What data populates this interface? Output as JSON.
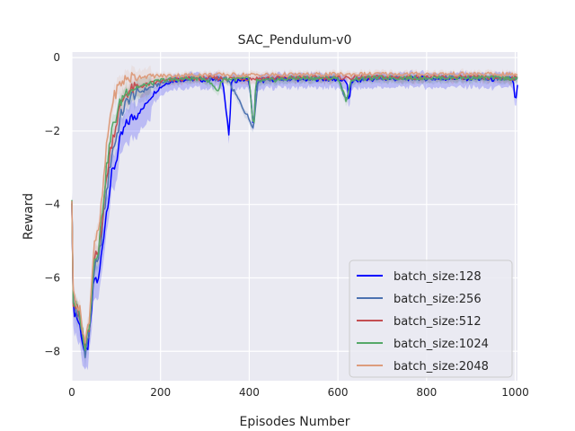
{
  "chart_data": {
    "type": "line",
    "title": "SAC_Pendulum-v0",
    "xlabel": "Episodes Number",
    "ylabel": "Reward",
    "xlim": [
      0,
      1005
    ],
    "ylim": [
      -8.8,
      0.15
    ],
    "xticks": [
      0,
      200,
      400,
      600,
      800,
      1000
    ],
    "yticks": [
      0,
      -2,
      -4,
      -6,
      -8
    ],
    "grid": true,
    "legend_position": "lower-right",
    "series": [
      {
        "name": "batch_size:128",
        "color": "#0000ff",
        "points": [
          [
            0,
            -3.8
          ],
          [
            2,
            -6.8
          ],
          [
            10,
            -7.0
          ],
          [
            20,
            -7.4
          ],
          [
            30,
            -8.2
          ],
          [
            40,
            -7.6
          ],
          [
            50,
            -6.0
          ],
          [
            60,
            -6.1
          ],
          [
            70,
            -5.0
          ],
          [
            80,
            -4.0
          ],
          [
            90,
            -3.2
          ],
          [
            100,
            -2.8
          ],
          [
            110,
            -2.2
          ],
          [
            120,
            -1.9
          ],
          [
            130,
            -1.7
          ],
          [
            140,
            -1.6
          ],
          [
            150,
            -1.5
          ],
          [
            160,
            -1.4
          ],
          [
            170,
            -1.2
          ],
          [
            180,
            -1.05
          ],
          [
            190,
            -0.9
          ],
          [
            200,
            -0.8
          ],
          [
            220,
            -0.65
          ],
          [
            240,
            -0.6
          ],
          [
            260,
            -0.6
          ],
          [
            280,
            -0.58
          ],
          [
            300,
            -0.62
          ],
          [
            320,
            -0.6
          ],
          [
            340,
            -0.6
          ],
          [
            355,
            -2.2
          ],
          [
            360,
            -0.65
          ],
          [
            380,
            -0.6
          ],
          [
            400,
            -0.62
          ],
          [
            410,
            -2.0
          ],
          [
            415,
            -0.7
          ],
          [
            440,
            -0.6
          ],
          [
            480,
            -0.58
          ],
          [
            520,
            -0.6
          ],
          [
            560,
            -0.58
          ],
          [
            600,
            -0.6
          ],
          [
            620,
            -0.65
          ],
          [
            625,
            -1.3
          ],
          [
            630,
            -0.65
          ],
          [
            660,
            -0.6
          ],
          [
            700,
            -0.58
          ],
          [
            740,
            -0.58
          ],
          [
            780,
            -0.56
          ],
          [
            820,
            -0.58
          ],
          [
            860,
            -0.56
          ],
          [
            900,
            -0.57
          ],
          [
            940,
            -0.6
          ],
          [
            980,
            -0.58
          ],
          [
            995,
            -0.6
          ],
          [
            1000,
            -1.25
          ],
          [
            1005,
            -0.8
          ]
        ]
      },
      {
        "name": "batch_size:256",
        "color": "#4c72b0",
        "points": [
          [
            0,
            -3.8
          ],
          [
            2,
            -6.7
          ],
          [
            10,
            -6.9
          ],
          [
            20,
            -7.3
          ],
          [
            30,
            -8.0
          ],
          [
            40,
            -7.5
          ],
          [
            50,
            -5.7
          ],
          [
            60,
            -5.6
          ],
          [
            70,
            -4.5
          ],
          [
            80,
            -3.5
          ],
          [
            90,
            -2.6
          ],
          [
            100,
            -2.2
          ],
          [
            110,
            -1.6
          ],
          [
            120,
            -1.3
          ],
          [
            130,
            -1.1
          ],
          [
            140,
            -1.0
          ],
          [
            150,
            -0.95
          ],
          [
            160,
            -0.9
          ],
          [
            180,
            -0.8
          ],
          [
            200,
            -0.7
          ],
          [
            220,
            -0.62
          ],
          [
            250,
            -0.58
          ],
          [
            300,
            -0.57
          ],
          [
            350,
            -0.58
          ],
          [
            410,
            -1.9
          ],
          [
            420,
            -0.6
          ],
          [
            500,
            -0.57
          ],
          [
            600,
            -0.56
          ],
          [
            620,
            -1.2
          ],
          [
            630,
            -0.58
          ],
          [
            700,
            -0.56
          ],
          [
            800,
            -0.55
          ],
          [
            900,
            -0.55
          ],
          [
            1000,
            -0.58
          ],
          [
            1005,
            -0.6
          ]
        ]
      },
      {
        "name": "batch_size:512",
        "color": "#c44e52",
        "points": [
          [
            0,
            -3.8
          ],
          [
            2,
            -6.6
          ],
          [
            10,
            -6.8
          ],
          [
            20,
            -7.2
          ],
          [
            30,
            -7.9
          ],
          [
            40,
            -7.3
          ],
          [
            50,
            -5.5
          ],
          [
            60,
            -5.3
          ],
          [
            70,
            -4.2
          ],
          [
            80,
            -3.1
          ],
          [
            90,
            -2.3
          ],
          [
            100,
            -1.8
          ],
          [
            110,
            -1.3
          ],
          [
            120,
            -1.0
          ],
          [
            130,
            -0.9
          ],
          [
            150,
            -0.8
          ],
          [
            180,
            -0.7
          ],
          [
            200,
            -0.65
          ],
          [
            250,
            -0.58
          ],
          [
            300,
            -0.56
          ],
          [
            400,
            -0.57
          ],
          [
            500,
            -0.55
          ],
          [
            600,
            -0.55
          ],
          [
            700,
            -0.54
          ],
          [
            800,
            -0.54
          ],
          [
            900,
            -0.54
          ],
          [
            1000,
            -0.56
          ],
          [
            1005,
            -0.57
          ]
        ]
      },
      {
        "name": "batch_size:1024",
        "color": "#55a868",
        "points": [
          [
            0,
            -3.8
          ],
          [
            2,
            -6.6
          ],
          [
            10,
            -6.8
          ],
          [
            20,
            -7.2
          ],
          [
            30,
            -7.9
          ],
          [
            40,
            -7.2
          ],
          [
            50,
            -5.5
          ],
          [
            60,
            -5.2
          ],
          [
            70,
            -4.0
          ],
          [
            80,
            -2.8
          ],
          [
            90,
            -2.0
          ],
          [
            100,
            -1.6
          ],
          [
            110,
            -1.2
          ],
          [
            120,
            -0.95
          ],
          [
            130,
            -0.85
          ],
          [
            150,
            -0.8
          ],
          [
            180,
            -0.7
          ],
          [
            200,
            -0.62
          ],
          [
            250,
            -0.58
          ],
          [
            300,
            -0.56
          ],
          [
            330,
            -0.9
          ],
          [
            340,
            -0.58
          ],
          [
            400,
            -0.58
          ],
          [
            410,
            -2.05
          ],
          [
            415,
            -0.65
          ],
          [
            500,
            -0.56
          ],
          [
            600,
            -0.56
          ],
          [
            620,
            -1.2
          ],
          [
            630,
            -0.58
          ],
          [
            700,
            -0.55
          ],
          [
            800,
            -0.55
          ],
          [
            900,
            -0.55
          ],
          [
            1000,
            -0.56
          ],
          [
            1005,
            -0.58
          ]
        ]
      },
      {
        "name": "batch_size:2048",
        "color": "#dd9c7c",
        "points": [
          [
            0,
            -3.8
          ],
          [
            2,
            -6.4
          ],
          [
            10,
            -6.6
          ],
          [
            20,
            -7.0
          ],
          [
            30,
            -7.8
          ],
          [
            40,
            -7.0
          ],
          [
            50,
            -5.0
          ],
          [
            60,
            -4.8
          ],
          [
            70,
            -3.6
          ],
          [
            80,
            -2.2
          ],
          [
            90,
            -1.3
          ],
          [
            100,
            -0.9
          ],
          [
            110,
            -0.7
          ],
          [
            120,
            -0.6
          ],
          [
            130,
            -0.55
          ],
          [
            150,
            -0.52
          ],
          [
            180,
            -0.5
          ],
          [
            200,
            -0.5
          ],
          [
            250,
            -0.48
          ],
          [
            300,
            -0.47
          ],
          [
            400,
            -0.47
          ],
          [
            500,
            -0.47
          ],
          [
            600,
            -0.46
          ],
          [
            700,
            -0.45
          ],
          [
            800,
            -0.45
          ],
          [
            900,
            -0.45
          ],
          [
            1000,
            -0.46
          ],
          [
            1005,
            -0.47
          ]
        ]
      }
    ]
  }
}
